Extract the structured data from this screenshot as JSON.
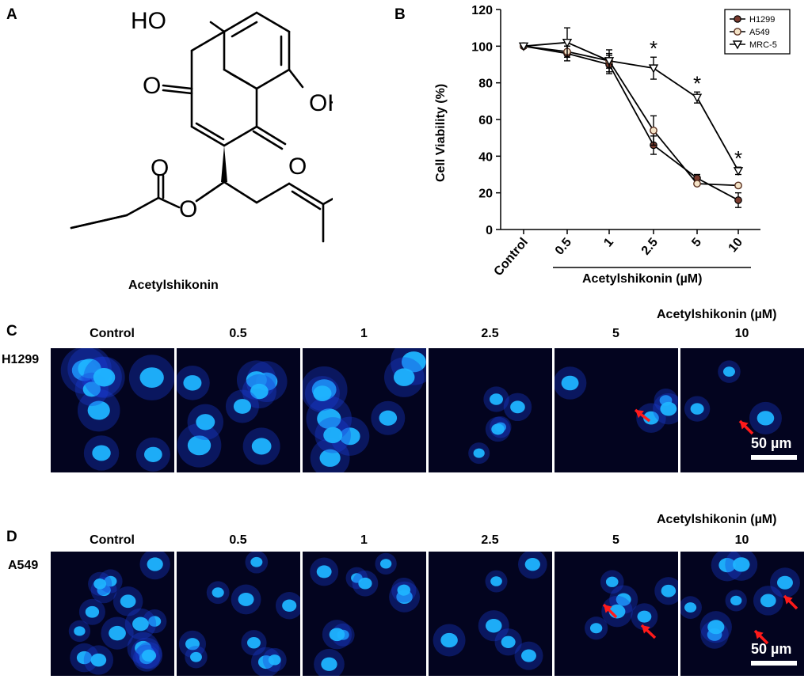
{
  "panels": {
    "a": {
      "letter": "A",
      "compound_name": "Acetylshikonin",
      "atoms": {
        "ho_top": "HO",
        "oh_right": "OH",
        "o_left": "O",
        "o_ring": "O",
        "o_ester_carbonyl": "O",
        "o_ester": "O"
      }
    },
    "b": {
      "letter": "B"
    },
    "c": {
      "letter": "C",
      "cell_line": "H1299",
      "treatment_label": "Acetylshikonin (µM)",
      "scale_bar": "50 µm"
    },
    "d": {
      "letter": "D",
      "cell_line": "A549",
      "treatment_label": "Acetylshikonin (µM)",
      "scale_bar": "50 µm"
    }
  },
  "conditions": [
    "Control",
    "0.5",
    "1",
    "2.5",
    "5",
    "10"
  ],
  "colors": {
    "image_background": "#03041f",
    "nucleus": "#1fb4ff",
    "cytoplasm": "#1a3dd6",
    "arrow": "#ff1a1a",
    "marker_fill": "#7a3b2e"
  },
  "chart_data": {
    "type": "line",
    "categories": [
      "Control",
      "0.5",
      "1",
      "2.5",
      "5",
      "10"
    ],
    "xlabel": "Acetylshikonin (µM)",
    "ylabel": "Cell Viability (%)",
    "ylim": [
      0,
      120
    ],
    "yticks": [
      0,
      20,
      40,
      60,
      80,
      100,
      120
    ],
    "legend_position": "top-right",
    "series": [
      {
        "name": "H1299",
        "marker": "filled-circle",
        "values": [
          100,
          96,
          90,
          46,
          28,
          16
        ],
        "errors": [
          1,
          4,
          5,
          5,
          2,
          4
        ]
      },
      {
        "name": "A549",
        "marker": "open-circle",
        "values": [
          100,
          97,
          92,
          54,
          25,
          24
        ],
        "errors": [
          1,
          3,
          4,
          8,
          1,
          1
        ]
      },
      {
        "name": "MRC-5",
        "marker": "open-triangle-down",
        "values": [
          100,
          102,
          92,
          88,
          72,
          32
        ],
        "errors": [
          1,
          8,
          6,
          6,
          3,
          2
        ]
      }
    ],
    "annotations": [
      {
        "category": "2.5",
        "text": "*"
      },
      {
        "category": "5",
        "text": "*"
      },
      {
        "category": "10",
        "text": "*"
      }
    ]
  }
}
